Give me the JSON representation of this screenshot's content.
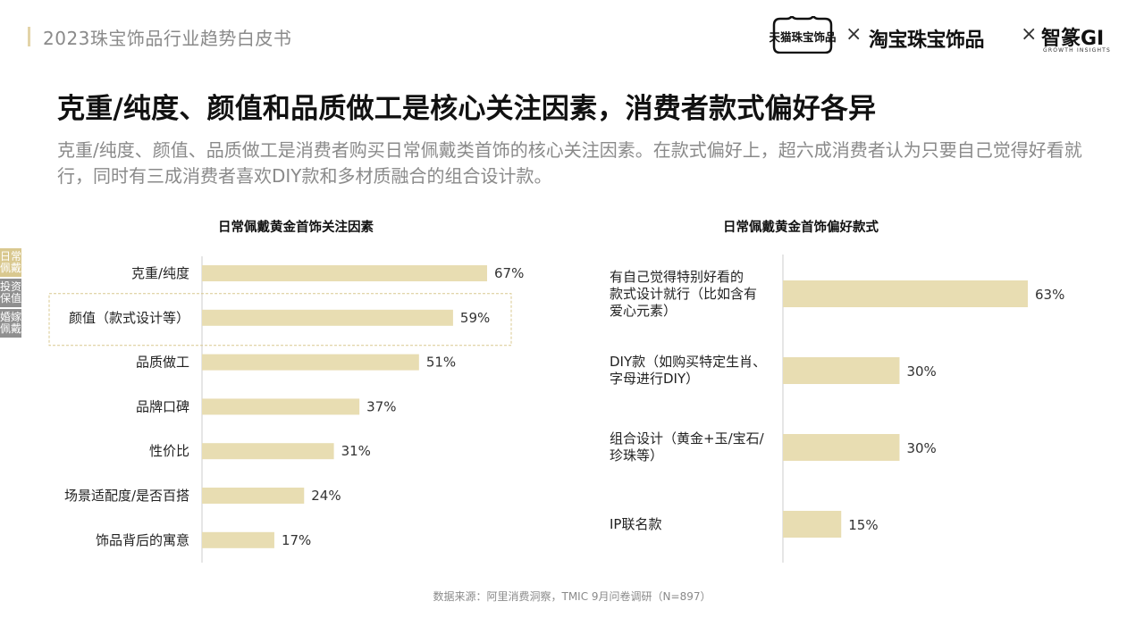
{
  "header": {
    "title": "2023珠宝饰品行业趋势白皮书",
    "logo_tmall": "天猫珠宝饰品",
    "times": "×",
    "logo_taobao": "淘宝珠宝饰品",
    "logo_zhi": "智篆GI",
    "logo_zhi_sub": "GROWTH INSIGHTS"
  },
  "main_title": "克重/纯度、颜值和品质做工是核心关注因素，消费者款式偏好各异",
  "subtitle": "克重/纯度、颜值、品质做工是消费者购买日常佩戴类首饰的核心关注因素。在款式偏好上，超六成消费者认为只要自己觉得好看就行，同时有三成消费者喜欢DIY款和多材质融合的组合设计款。",
  "side_tabs": [
    "日常佩戴",
    "投资保值",
    "婚嫁佩戴"
  ],
  "colors": {
    "bar": "#e8ddb2",
    "accent": "#e3d4a8",
    "highlight_border": "#d9c98f"
  },
  "chart_data": [
    {
      "type": "bar",
      "orientation": "horizontal",
      "title": "日常佩戴黄金首饰关注因素",
      "categories": [
        "克重/纯度",
        "颜值（款式设计等）",
        "品质做工",
        "品牌口碑",
        "性价比",
        "场景适配度/是否百搭",
        "饰品背后的寓意"
      ],
      "values": [
        67,
        59,
        51,
        37,
        31,
        24,
        17
      ],
      "value_labels": [
        "67%",
        "59%",
        "51%",
        "37%",
        "31%",
        "24%",
        "17%"
      ],
      "highlighted_category": "颜值（款式设计等）",
      "xlim": [
        0,
        100
      ]
    },
    {
      "type": "bar",
      "orientation": "horizontal",
      "title": "日常佩戴黄金首饰偏好款式",
      "categories": [
        "有自己觉得特别好看的款式设计就行（比如含有爱心元素）",
        "DIY款（如购买特定生肖、字母进行DIY）",
        "组合设计（黄金+玉/宝石/珍珠等）",
        "IP联名款"
      ],
      "category_lines": [
        [
          "有自己觉得特别好看的",
          "款式设计就行（比如含有",
          "爱心元素）"
        ],
        [
          "DIY款（如购买特定生肖、",
          "字母进行DIY）"
        ],
        [
          "组合设计（黄金+玉/宝石/",
          "珍珠等）"
        ],
        [
          "IP联名款"
        ]
      ],
      "values": [
        63,
        30,
        30,
        15
      ],
      "value_labels": [
        "63%",
        "30%",
        "30%",
        "15%"
      ],
      "xlim": [
        0,
        100
      ]
    }
  ],
  "source": "数据来源：阿里消费洞察，TMIC 9月问卷调研（N=897）"
}
